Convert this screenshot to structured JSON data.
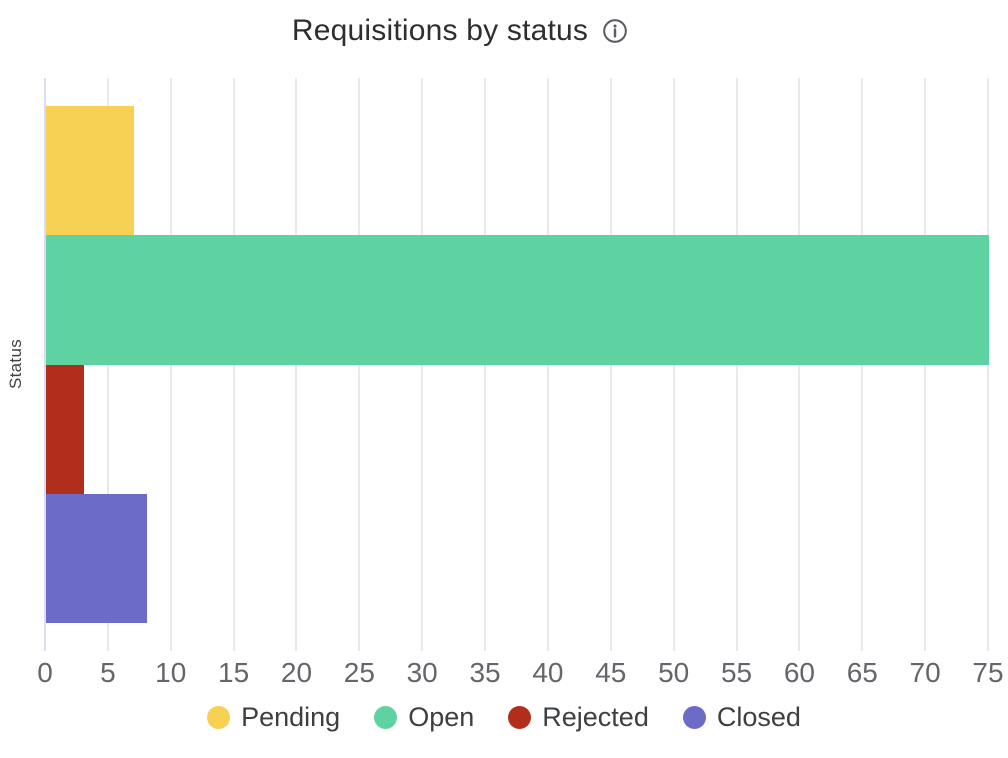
{
  "header": {
    "info_icon": "info-icon"
  },
  "chart_data": {
    "type": "bar",
    "orientation": "horizontal",
    "title": "Requisitions by status",
    "ylabel": "Status",
    "xlabel": "",
    "categories": [
      "Pending",
      "Open",
      "Rejected",
      "Closed"
    ],
    "values": [
      7,
      75,
      3,
      8
    ],
    "colors": [
      "#f7d154",
      "#5fd2a2",
      "#b12d1c",
      "#6c6bc7"
    ],
    "xlim": [
      0,
      75
    ],
    "x_ticks": [
      0,
      5,
      10,
      15,
      20,
      25,
      30,
      35,
      40,
      45,
      50,
      55,
      60,
      65,
      70,
      75
    ],
    "grid": true,
    "legend_position": "bottom",
    "style": {
      "grid_color": "#e9e9ec",
      "zero_axis_color": "#d8ddf2",
      "tick_label_color": "#63666a",
      "title_color": "#2c2e30",
      "icon_color": "#5b5e63"
    }
  }
}
